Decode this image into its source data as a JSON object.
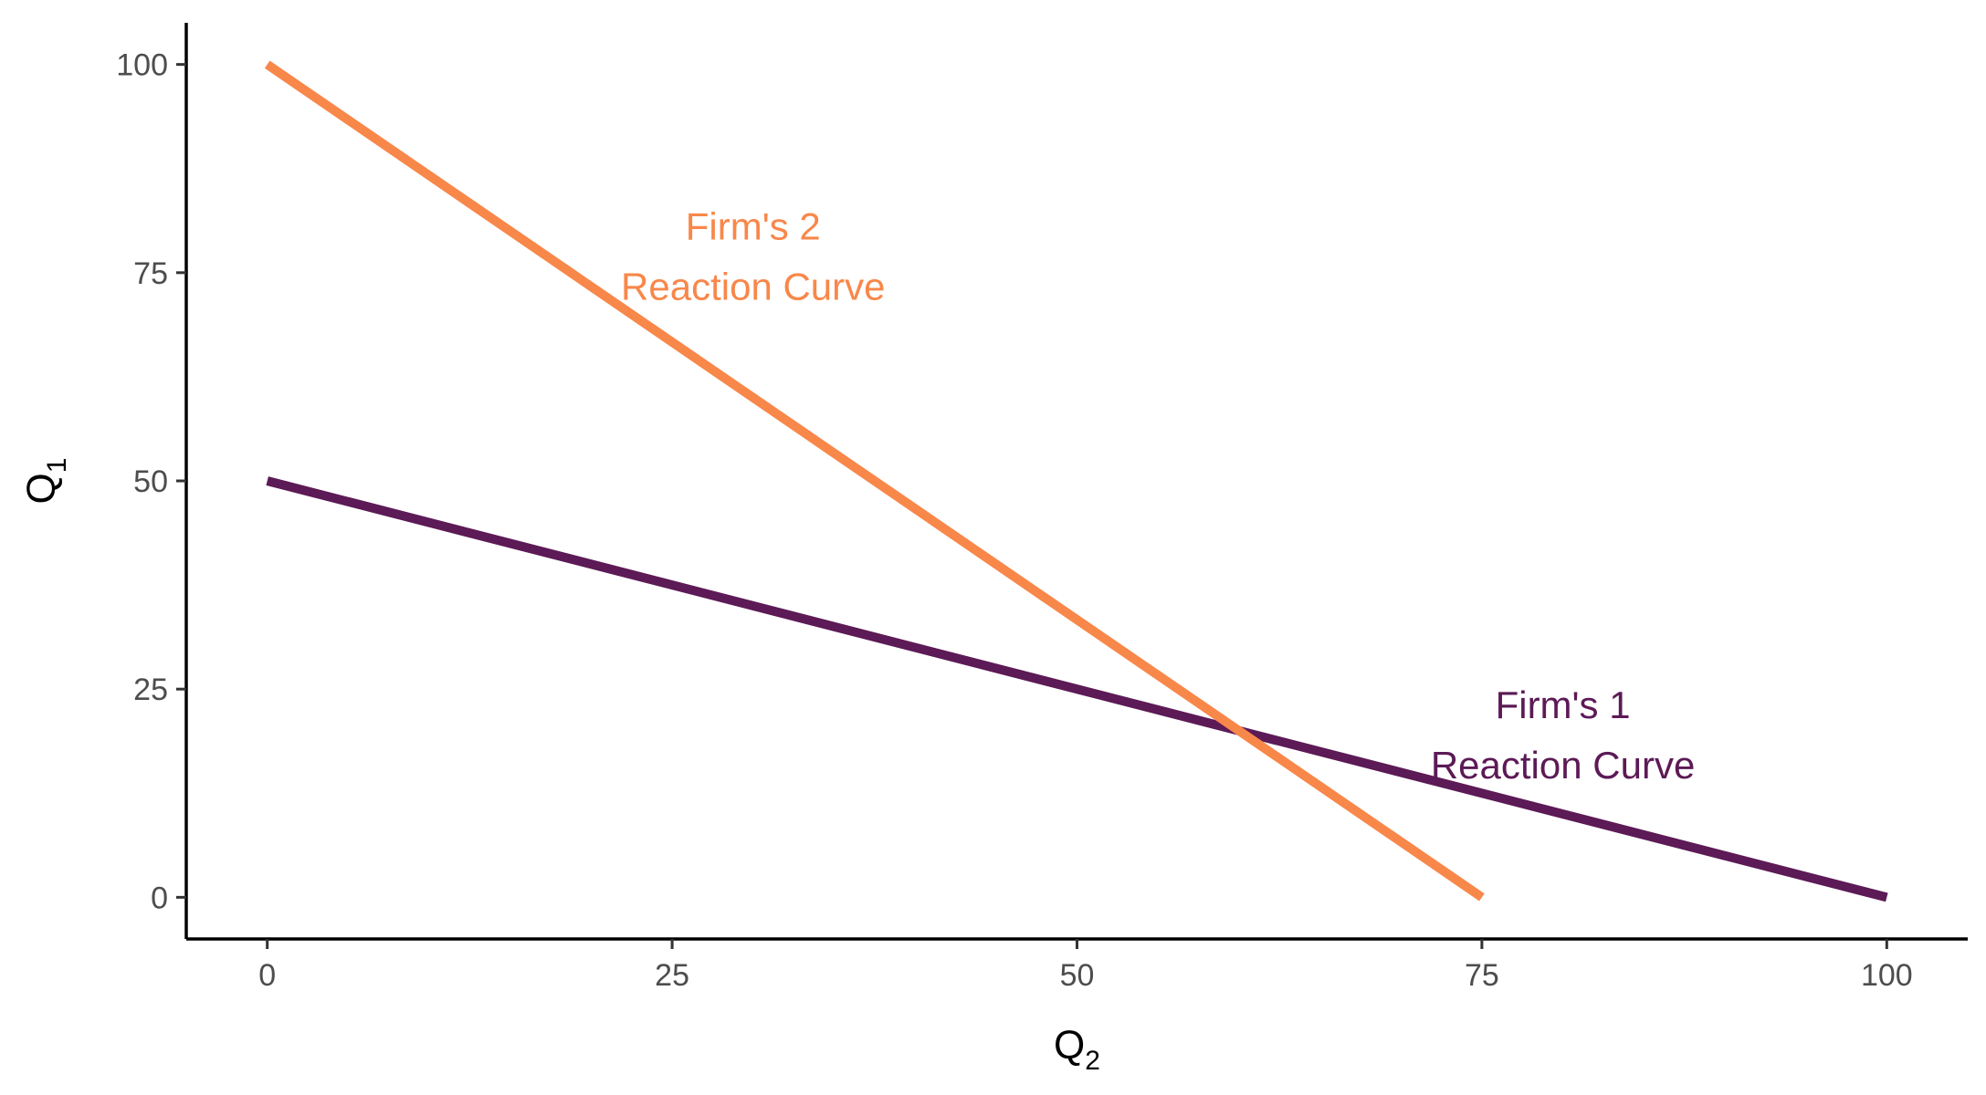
{
  "chart_data": {
    "type": "line",
    "xlabel": {
      "base": "Q",
      "sub": "2"
    },
    "ylabel": {
      "base": "Q",
      "sub": "1"
    },
    "xlim": [
      -5,
      105
    ],
    "ylim": [
      -5,
      105
    ],
    "x_ticks": [
      0,
      25,
      50,
      75,
      100
    ],
    "y_ticks": [
      0,
      25,
      50,
      75,
      100
    ],
    "grid": false,
    "series": [
      {
        "id": "firm1",
        "color": "#5c1a56",
        "points": [
          [
            0,
            50
          ],
          [
            100,
            0
          ]
        ]
      },
      {
        "id": "firm2",
        "color": "#f8874a",
        "points": [
          [
            0,
            100
          ],
          [
            75,
            0
          ]
        ]
      }
    ],
    "annotations": [
      {
        "id": "firm2-label",
        "lines": [
          "Firm's 2",
          "Reaction Curve"
        ],
        "x": 30,
        "y": 79,
        "color": "#f8874a"
      },
      {
        "id": "firm1-label",
        "lines": [
          "Firm's 1",
          "Reaction Curve"
        ],
        "x": 80,
        "y": 21.5,
        "color": "#5c1a56"
      }
    ]
  }
}
